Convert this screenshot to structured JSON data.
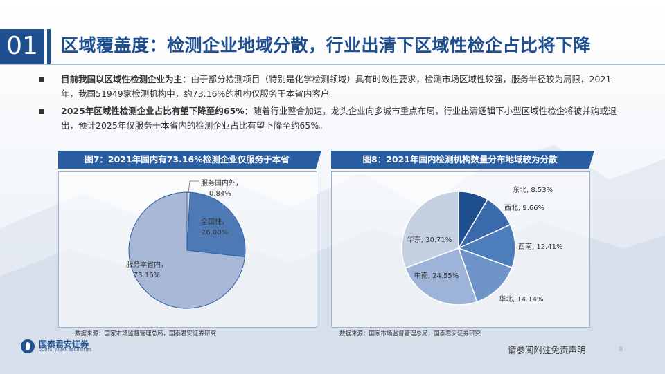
{
  "header": {
    "section_number": "01",
    "title": "区域覆盖度：检测企业地域分散，行业出清下区域性检企占比将下降"
  },
  "bullets": [
    {
      "bold": "目前我国以区域性检测企业为主：",
      "text": "由于部分检测项目（特别是化学检测领域）具有时效性要求，检测市场区域性较强，服务半径较为局限，2021年，我国51949家检测机构中，约73.16%的机构仅服务于本省内客户。"
    },
    {
      "bold": "2025年区域性检测企业占比有望下降至约65%：",
      "text": "随着行业整合加速，龙头企业向多城市重点布局，行业出清逻辑下小型区域性检企将被并购或退出，预计2025年仅服务于本省内的检测企业占比有望下降至约65%。"
    }
  ],
  "figures": {
    "fig7": {
      "title": "图7：2021年国内有73.16%检测企业仅服务于本省",
      "source": "数据来源：国家市场监督管理总局，国泰君安证券研究"
    },
    "fig8": {
      "title": "图8：2021年国内检测机构数量分布地域较为分散",
      "source": "数据来源：国家市场监督管理总局，国泰君安证券研究"
    }
  },
  "chart_data": [
    {
      "type": "pie",
      "categories": [
        "服务国内外",
        "全国性",
        "服务本省内"
      ],
      "values": [
        0.84,
        26.0,
        73.16
      ],
      "labels": [
        "0.84%",
        "26.00%",
        "73.16%"
      ],
      "colors": [
        "#d8dee8",
        "#4d79b4",
        "#a8b8d6"
      ]
    },
    {
      "type": "pie",
      "categories": [
        "东北",
        "西北",
        "西南",
        "华北",
        "中南",
        "华东"
      ],
      "values": [
        8.53,
        9.66,
        12.41,
        14.14,
        24.55,
        30.71
      ],
      "labels": [
        "8.53%",
        "9.66%",
        "12.41%",
        "14.14%",
        "24.55%",
        "30.71%"
      ],
      "colors": [
        "#1f4f8f",
        "#3a6aab",
        "#4d7dbb",
        "#6f95c8",
        "#9db3d8",
        "#c5d0e3"
      ]
    }
  ],
  "footer": {
    "logo_cn": "国泰君安证券",
    "logo_en": "GUOTAI JUNAN SECURITIES",
    "disclaimer": "请参阅附注免责声明",
    "page_number": "8"
  }
}
